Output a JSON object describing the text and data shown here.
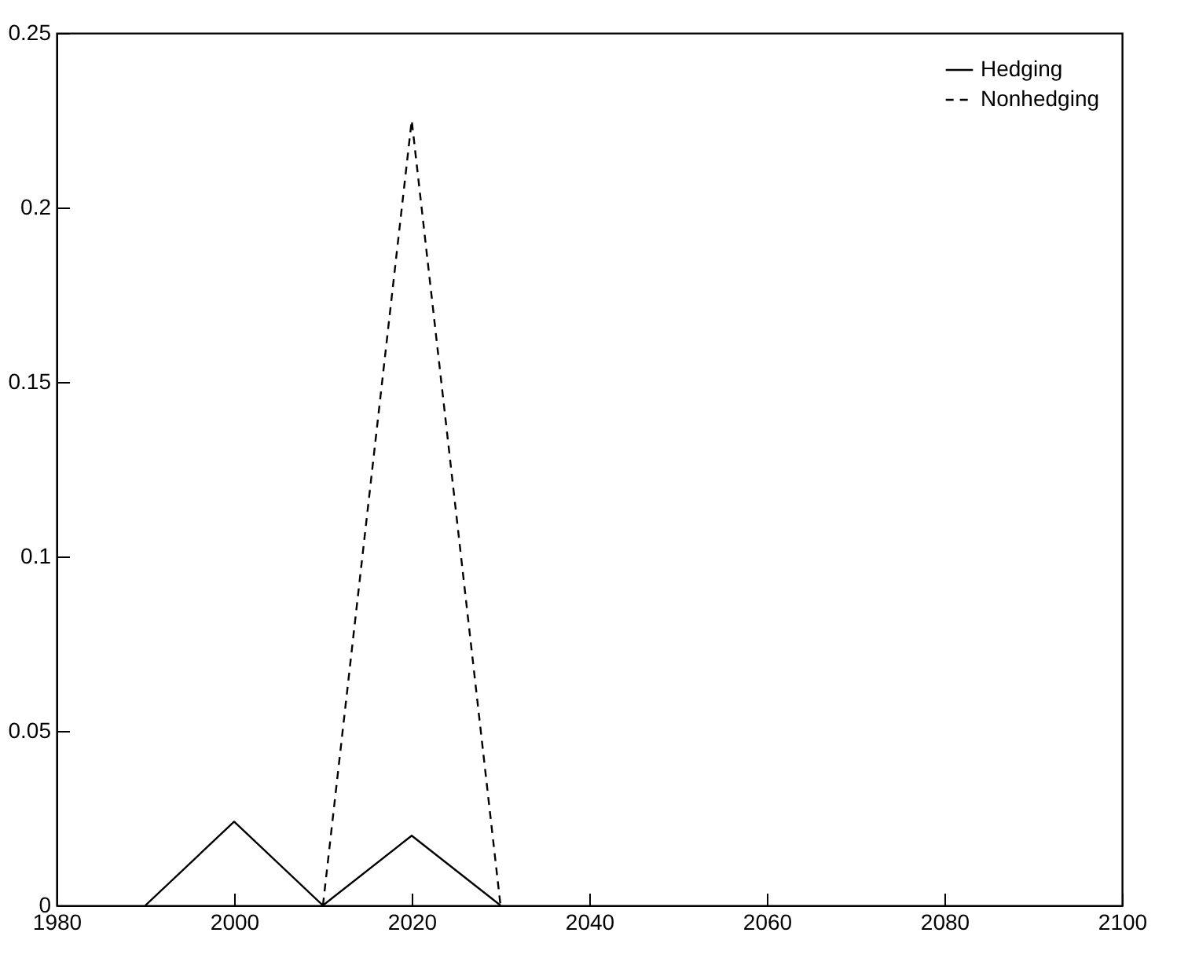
{
  "chart_data": {
    "type": "line",
    "x": [
      1990,
      2000,
      2010,
      2020,
      2030
    ],
    "series": [
      {
        "name": "Hedging",
        "color": "#000000",
        "line_style": "solid",
        "values": [
          0,
          0.024,
          0,
          0.02,
          0
        ]
      },
      {
        "name": "Nonhedging",
        "color": "#000000",
        "line_style": "dashed",
        "x": [
          2010,
          2020,
          2030
        ],
        "values": [
          0,
          0.225,
          0
        ]
      }
    ],
    "xlim": [
      1980,
      2100
    ],
    "xticks": [
      1980,
      2000,
      2020,
      2040,
      2060,
      2080,
      2100
    ],
    "ylim": [
      0,
      0.25
    ],
    "yticks": [
      0,
      0.05,
      0.1,
      0.15,
      0.2,
      0.25
    ],
    "grid": false,
    "legend": "top right",
    "marker": "none"
  }
}
